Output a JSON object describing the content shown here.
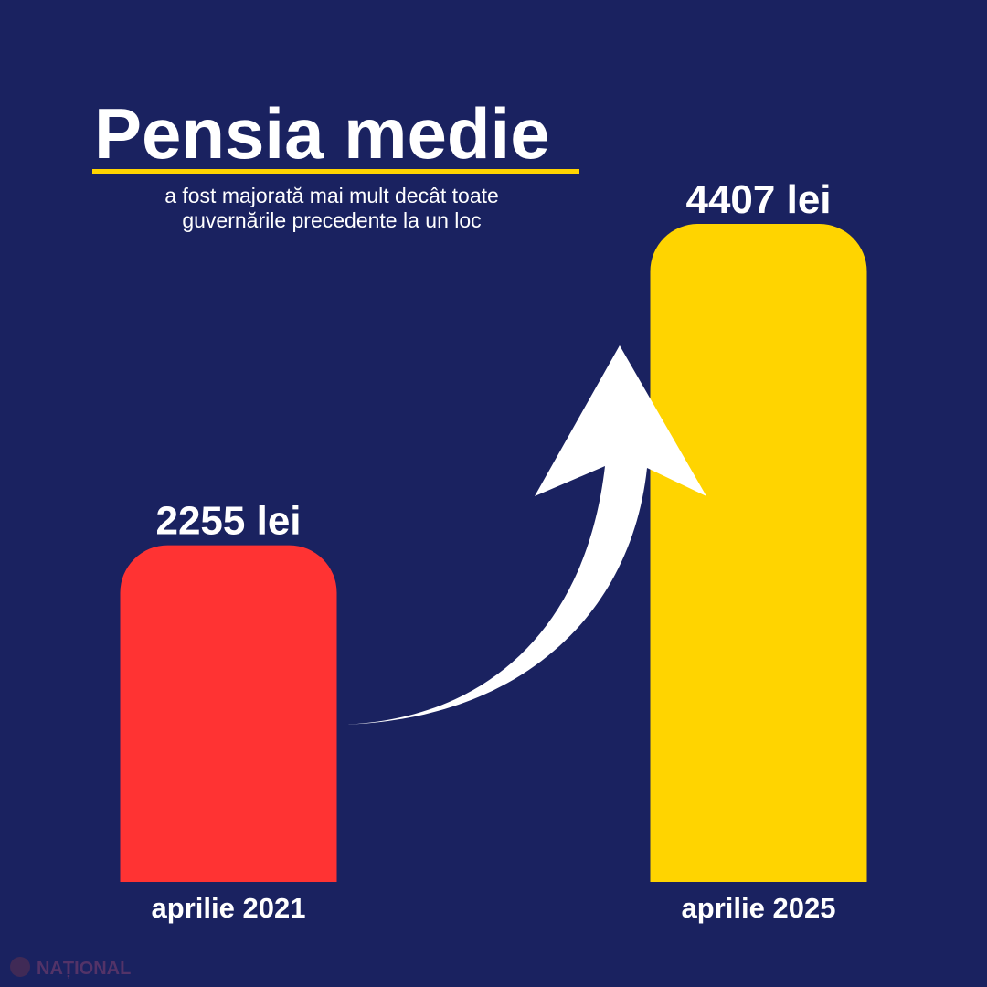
{
  "chart_data": {
    "type": "bar",
    "title": "Pensia medie",
    "subtitle": [
      "a fost majorată mai mult decât toate",
      "guvernările precedente la un loc"
    ],
    "categories": [
      "aprilie 2021",
      "aprilie 2025"
    ],
    "values": [
      2255,
      4407
    ],
    "value_labels": [
      "2255 lei",
      "4407 lei"
    ],
    "colors": [
      "#ff3333",
      "#ffd400"
    ],
    "watermark": "NAȚIONAL"
  }
}
